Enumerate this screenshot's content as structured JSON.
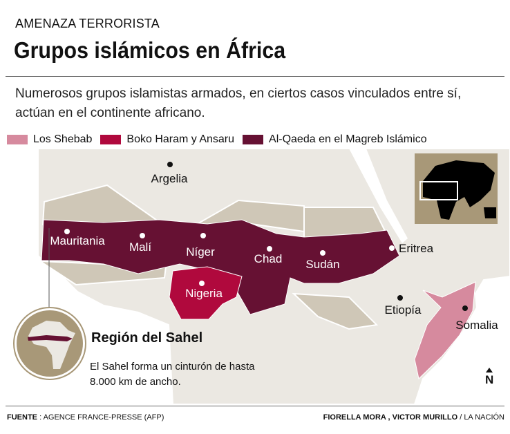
{
  "header": {
    "kicker": "AMENAZA TERRORISTA",
    "title": "Grupos islámicos en África"
  },
  "subtitle": "Numerosos grupos islamistas armados, en ciertos casos vinculados entre sí, actúan en el continente africano.",
  "legend": [
    {
      "label": "Los Shebab",
      "color": "#d68a9e"
    },
    {
      "label": "Boko Haram y Ansaru",
      "color": "#b0093d"
    },
    {
      "label": "Al-Qaeda en el Magreb Islámico",
      "color": "#661133"
    }
  ],
  "map": {
    "places": {
      "argelia": "Argelia",
      "mauritania": "Mauritania",
      "mali": "Malí",
      "niger": "Níger",
      "chad": "Chad",
      "sudan": "Sudán",
      "eritrea": "Eritrea",
      "nigeria": "Nigeria",
      "etiopia": "Etiopía",
      "somalia": "Somalia"
    },
    "colors": {
      "land": "#ebe8e2",
      "land_alt": "#cfc7b7",
      "sea": "#ffffff",
      "inset": "#a89878"
    },
    "north_label": "N"
  },
  "sahel": {
    "title": "Región del Sahel",
    "text": "El Sahel forma un cinturón de hasta 8.000 km de ancho."
  },
  "footer": {
    "source_label": "FUENTE",
    "source": ": AGENCE FRANCE-PRESSE (AFP)",
    "authors": "FIORELLA MORA , VICTOR MURILLO",
    "outlet": "/ LA NACIÓN"
  }
}
